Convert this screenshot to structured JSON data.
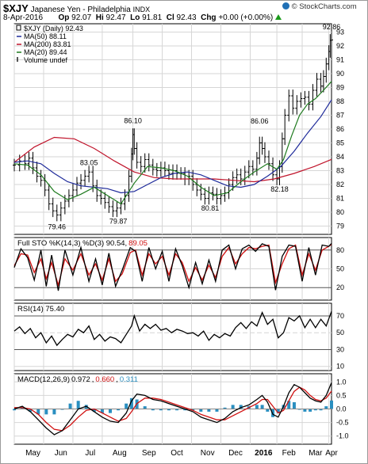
{
  "header": {
    "symbol": "$XJY",
    "name": "Japanese Yen - Philadelphia",
    "exchange": "INDX",
    "date": "8-Apr-2016",
    "copyright": "© StockCharts.com",
    "stats": {
      "op": "92.07",
      "hi": "92.47",
      "lo": "91.81",
      "cl": "92.43",
      "chg": "+0.00 (+0.00%)"
    },
    "stat_labels": {
      "op": "Op",
      "hi": "Hi",
      "lo": "Lo",
      "cl": "Cl",
      "chg": "Chg"
    },
    "chg_arrow": "up-triangle-icon"
  },
  "colors": {
    "price": "#000000",
    "ma50": "#1e2a9a",
    "ma200": "#c0142b",
    "ma20": "#1e7a1e",
    "sto_k": "#000000",
    "sto_d": "#d01010",
    "rsi": "#000000",
    "macd": "#000000",
    "signal": "#d01010",
    "hist": "#2a8fc0",
    "grid": "#d6d6d6",
    "ref": "#9a9a9a"
  },
  "chart_data": [
    {
      "type": "line",
      "subtype": "ohlc",
      "legend": [
        {
          "label": "$XJY (Daily) 92.43",
          "color": "#000000",
          "marker": "price"
        },
        {
          "label": "MA(50) 88.11",
          "color": "#1e2a9a",
          "marker": "line"
        },
        {
          "label": "MA(200) 83.81",
          "color": "#c0142b",
          "marker": "line"
        },
        {
          "label": "MA(20) 89.44",
          "color": "#1e7a1e",
          "marker": "line"
        },
        {
          "label": "Volume undef",
          "color": "#555555",
          "marker": "volume"
        }
      ],
      "ylim": [
        78.4,
        93.6
      ],
      "yticks": [
        79,
        80,
        81,
        82,
        83,
        84,
        85,
        86,
        87,
        88,
        89,
        90,
        91,
        92,
        93
      ],
      "x_range": [
        0,
        238
      ],
      "x_months": [
        {
          "label": "May",
          "x": 14
        },
        {
          "label": "Jun",
          "x": 35
        },
        {
          "label": "Jul",
          "x": 57
        },
        {
          "label": "Aug",
          "x": 79
        },
        {
          "label": "Sep",
          "x": 101
        },
        {
          "label": "Oct",
          "x": 122
        },
        {
          "label": "Nov",
          "x": 145
        },
        {
          "label": "Dec",
          "x": 166
        },
        {
          "label": "2016",
          "x": 187
        },
        {
          "label": "Feb",
          "x": 206
        },
        {
          "label": "Mar",
          "x": 226
        },
        {
          "label": "Apr",
          "x": 238
        }
      ],
      "month_grid_x": [
        0,
        22,
        44,
        66,
        89,
        111,
        133,
        155,
        177,
        197,
        216,
        236
      ],
      "annotations": [
        {
          "text": "83.05",
          "x": 56,
          "y": 83.05
        },
        {
          "text": "79.46",
          "x": 32,
          "y": 79.46
        },
        {
          "text": "86.10",
          "x": 89,
          "y": 86.1
        },
        {
          "text": "79.87",
          "x": 78,
          "y": 79.87
        },
        {
          "text": "80.81",
          "x": 147,
          "y": 80.81
        },
        {
          "text": "86.06",
          "x": 184,
          "y": 86.06
        },
        {
          "text": "82.18",
          "x": 199,
          "y": 82.18
        },
        {
          "text": "92.86",
          "x": 238,
          "y": 92.86
        }
      ],
      "series": [
        {
          "name": "$XJY (Daily)",
          "key": "price",
          "x": [
            0,
            4,
            8,
            11,
            14,
            17,
            20,
            23,
            26,
            29,
            32,
            35,
            38,
            41,
            44,
            47,
            50,
            53,
            56,
            59,
            62,
            65,
            68,
            71,
            74,
            77,
            80,
            83,
            86,
            88,
            89,
            90,
            92,
            95,
            98,
            101,
            104,
            107,
            110,
            113,
            116,
            119,
            122,
            125,
            128,
            131,
            134,
            137,
            140,
            143,
            146,
            149,
            152,
            155,
            158,
            161,
            164,
            167,
            170,
            173,
            176,
            179,
            182,
            184,
            186,
            188,
            191,
            194,
            197,
            199,
            201,
            203,
            206,
            209,
            212,
            215,
            218,
            221,
            224,
            227,
            230,
            232,
            234,
            236,
            237,
            238
          ],
          "values": [
            83.4,
            83.7,
            83.5,
            83.9,
            83.2,
            82.6,
            82.3,
            81.6,
            80.6,
            80.1,
            79.8,
            80.3,
            80.8,
            81.2,
            81.6,
            82.1,
            82.3,
            82.6,
            82.9,
            81.9,
            81.2,
            81.0,
            80.7,
            80.4,
            80.1,
            80.3,
            80.6,
            81.2,
            82.6,
            84.2,
            85.6,
            84.6,
            83.6,
            83.3,
            83.8,
            83.4,
            83.1,
            83.0,
            83.2,
            83.0,
            82.8,
            83.0,
            82.8,
            82.8,
            82.4,
            82.6,
            82.0,
            81.6,
            81.3,
            81.0,
            81.4,
            81.3,
            81.0,
            81.2,
            81.4,
            82.0,
            82.5,
            82.7,
            82.4,
            82.9,
            83.3,
            83.1,
            83.9,
            85.0,
            84.6,
            84.0,
            83.5,
            82.7,
            82.4,
            83.3,
            85.3,
            87.0,
            88.4,
            87.5,
            88.0,
            88.2,
            88.3,
            87.8,
            88.8,
            89.6,
            89.1,
            89.8,
            90.7,
            91.6,
            92.4,
            92.43
          ]
        },
        {
          "name": "MA(20)",
          "key": "ma20",
          "x": [
            0,
            10,
            20,
            30,
            40,
            50,
            60,
            70,
            80,
            90,
            100,
            110,
            120,
            130,
            140,
            150,
            160,
            170,
            180,
            190,
            197,
            202,
            208,
            214,
            220,
            226,
            232,
            238
          ],
          "values": [
            83.5,
            83.4,
            82.7,
            81.5,
            80.9,
            81.3,
            81.8,
            81.2,
            80.6,
            82.1,
            83.3,
            83.2,
            83.0,
            82.6,
            81.8,
            81.2,
            81.4,
            82.2,
            82.9,
            83.5,
            83.1,
            83.8,
            85.5,
            87.0,
            87.8,
            88.2,
            88.8,
            89.44
          ]
        },
        {
          "name": "MA(50)",
          "key": "ma50",
          "x": [
            0,
            10,
            20,
            30,
            40,
            50,
            60,
            70,
            80,
            90,
            100,
            110,
            120,
            130,
            140,
            150,
            160,
            170,
            180,
            190,
            200,
            210,
            220,
            230,
            238
          ],
          "values": [
            83.6,
            83.7,
            83.5,
            82.8,
            82.2,
            81.9,
            81.8,
            81.7,
            81.4,
            81.5,
            82.0,
            82.5,
            82.8,
            82.9,
            82.7,
            82.3,
            81.9,
            81.8,
            82.0,
            82.6,
            83.3,
            84.4,
            85.7,
            86.9,
            88.11
          ]
        },
        {
          "name": "MA(200)",
          "key": "ma200",
          "x": [
            0,
            15,
            30,
            45,
            60,
            75,
            90,
            105,
            120,
            135,
            150,
            165,
            180,
            195,
            210,
            225,
            238
          ],
          "values": [
            83.6,
            84.7,
            85.4,
            85.3,
            84.6,
            83.7,
            82.9,
            82.5,
            82.4,
            82.4,
            82.4,
            82.3,
            82.2,
            82.4,
            82.8,
            83.3,
            83.81
          ]
        }
      ]
    },
    {
      "type": "line",
      "legend": [
        {
          "label": "Full STO %K(14,3) %D(3) 90.54, ",
          "color": "#000000"
        },
        {
          "label": "89.05",
          "color": "#d01010"
        }
      ],
      "ylim": [
        0,
        100
      ],
      "yticks": [
        20,
        50,
        80
      ],
      "series": [
        {
          "name": "%K",
          "key": "sto_k",
          "x": [
            0,
            5,
            10,
            15,
            20,
            24,
            28,
            33,
            38,
            44,
            50,
            56,
            61,
            66,
            71,
            76,
            81,
            87,
            91,
            96,
            101,
            106,
            111,
            116,
            121,
            126,
            131,
            136,
            141,
            146,
            151,
            156,
            161,
            166,
            171,
            176,
            181,
            186,
            191,
            196,
            201,
            206,
            211,
            216,
            221,
            226,
            231,
            236,
            238
          ],
          "values": [
            52,
            82,
            68,
            32,
            80,
            22,
            72,
            15,
            80,
            40,
            84,
            30,
            66,
            24,
            75,
            22,
            48,
            84,
            78,
            30,
            84,
            50,
            78,
            30,
            82,
            55,
            20,
            60,
            26,
            64,
            30,
            80,
            88,
            50,
            82,
            88,
            78,
            90,
            86,
            16,
            70,
            88,
            86,
            30,
            84,
            40,
            88,
            86,
            90.54
          ]
        },
        {
          "name": "%D",
          "key": "sto_d",
          "x": [
            0,
            5,
            10,
            15,
            20,
            24,
            28,
            33,
            38,
            44,
            50,
            56,
            61,
            66,
            71,
            76,
            81,
            87,
            91,
            96,
            101,
            106,
            111,
            116,
            121,
            126,
            131,
            136,
            141,
            146,
            151,
            156,
            161,
            166,
            171,
            176,
            181,
            186,
            191,
            196,
            201,
            206,
            211,
            216,
            221,
            226,
            231,
            236,
            238
          ],
          "values": [
            55,
            74,
            72,
            44,
            66,
            34,
            60,
            24,
            66,
            48,
            74,
            40,
            58,
            32,
            66,
            30,
            42,
            76,
            80,
            40,
            74,
            58,
            70,
            40,
            74,
            60,
            30,
            52,
            32,
            56,
            36,
            70,
            84,
            58,
            74,
            84,
            82,
            86,
            88,
            28,
            58,
            82,
            88,
            40,
            74,
            48,
            80,
            86,
            89.05
          ]
        }
      ]
    },
    {
      "type": "line",
      "legend": [
        {
          "label": "RSI(14) 75.40",
          "color": "#000000"
        }
      ],
      "ylim": [
        5,
        85
      ],
      "yticks": [
        10,
        30,
        50,
        70
      ],
      "ref_lines": [
        70,
        30
      ],
      "series": [
        {
          "name": "RSI(14)",
          "key": "rsi",
          "x": [
            0,
            4,
            8,
            12,
            16,
            20,
            24,
            28,
            32,
            36,
            40,
            44,
            48,
            52,
            56,
            60,
            64,
            68,
            72,
            76,
            80,
            84,
            88,
            90,
            94,
            98,
            102,
            106,
            110,
            114,
            118,
            122,
            126,
            130,
            134,
            138,
            142,
            146,
            150,
            154,
            158,
            162,
            166,
            170,
            174,
            178,
            182,
            186,
            190,
            194,
            198,
            202,
            206,
            210,
            214,
            218,
            222,
            226,
            230,
            234,
            238
          ],
          "values": [
            52,
            57,
            49,
            55,
            44,
            50,
            38,
            46,
            35,
            42,
            48,
            45,
            54,
            50,
            58,
            42,
            48,
            40,
            45,
            43,
            38,
            48,
            58,
            70,
            52,
            60,
            55,
            60,
            53,
            55,
            50,
            54,
            52,
            49,
            50,
            46,
            52,
            41,
            48,
            44,
            49,
            46,
            56,
            62,
            55,
            63,
            58,
            74,
            60,
            66,
            44,
            50,
            68,
            64,
            70,
            56,
            66,
            56,
            66,
            58,
            75.4
          ]
        }
      ]
    },
    {
      "type": "line",
      "legend": [
        {
          "label": "MACD(12,26,9) ",
          "color": "#000000"
        },
        {
          "label": "0.972",
          "color": "#000000"
        },
        {
          "label": ", ",
          "color": "#000000"
        },
        {
          "label": "0.660",
          "color": "#d01010"
        },
        {
          "label": ", ",
          "color": "#000000"
        },
        {
          "label": "0.311",
          "color": "#2a8fc0"
        }
      ],
      "ylim": [
        -1.3,
        1.3
      ],
      "yticks": [
        -1.0,
        -0.5,
        0.0,
        0.5,
        1.0
      ],
      "series": [
        {
          "name": "MACD",
          "key": "macd",
          "x": [
            0,
            6,
            12,
            18,
            24,
            30,
            36,
            42,
            48,
            54,
            60,
            66,
            72,
            78,
            84,
            88,
            92,
            98,
            104,
            110,
            116,
            122,
            128,
            134,
            140,
            146,
            152,
            158,
            164,
            170,
            176,
            182,
            186,
            190,
            194,
            198,
            202,
            206,
            210,
            214,
            218,
            222,
            226,
            230,
            234,
            238
          ],
          "values": [
            0.0,
            0.1,
            -0.1,
            -0.4,
            -0.7,
            -0.95,
            -0.8,
            -0.4,
            0.0,
            0.1,
            -0.1,
            -0.3,
            -0.45,
            -0.5,
            -0.15,
            0.3,
            0.55,
            0.5,
            0.35,
            0.3,
            0.2,
            0.1,
            0.0,
            -0.1,
            -0.3,
            -0.4,
            -0.5,
            -0.35,
            -0.1,
            0.05,
            0.15,
            0.35,
            0.5,
            0.25,
            -0.2,
            -0.3,
            0.1,
            0.6,
            0.9,
            0.8,
            0.6,
            0.4,
            0.3,
            0.25,
            0.5,
            0.972
          ]
        },
        {
          "name": "Signal",
          "key": "signal",
          "x": [
            0,
            6,
            12,
            18,
            24,
            30,
            36,
            42,
            48,
            54,
            60,
            66,
            72,
            78,
            84,
            88,
            92,
            98,
            104,
            110,
            116,
            122,
            128,
            134,
            140,
            146,
            152,
            158,
            164,
            170,
            176,
            182,
            186,
            190,
            194,
            198,
            202,
            206,
            210,
            214,
            218,
            222,
            226,
            230,
            234,
            238
          ],
          "values": [
            0.05,
            0.05,
            0.0,
            -0.2,
            -0.5,
            -0.75,
            -0.8,
            -0.6,
            -0.3,
            -0.05,
            0.0,
            -0.15,
            -0.3,
            -0.45,
            -0.35,
            -0.1,
            0.2,
            0.4,
            0.4,
            0.35,
            0.25,
            0.15,
            0.05,
            -0.05,
            -0.2,
            -0.3,
            -0.4,
            -0.4,
            -0.25,
            -0.1,
            0.05,
            0.2,
            0.35,
            0.35,
            0.1,
            -0.15,
            -0.05,
            0.3,
            0.65,
            0.8,
            0.7,
            0.5,
            0.35,
            0.3,
            0.4,
            0.66
          ]
        }
      ]
    }
  ]
}
